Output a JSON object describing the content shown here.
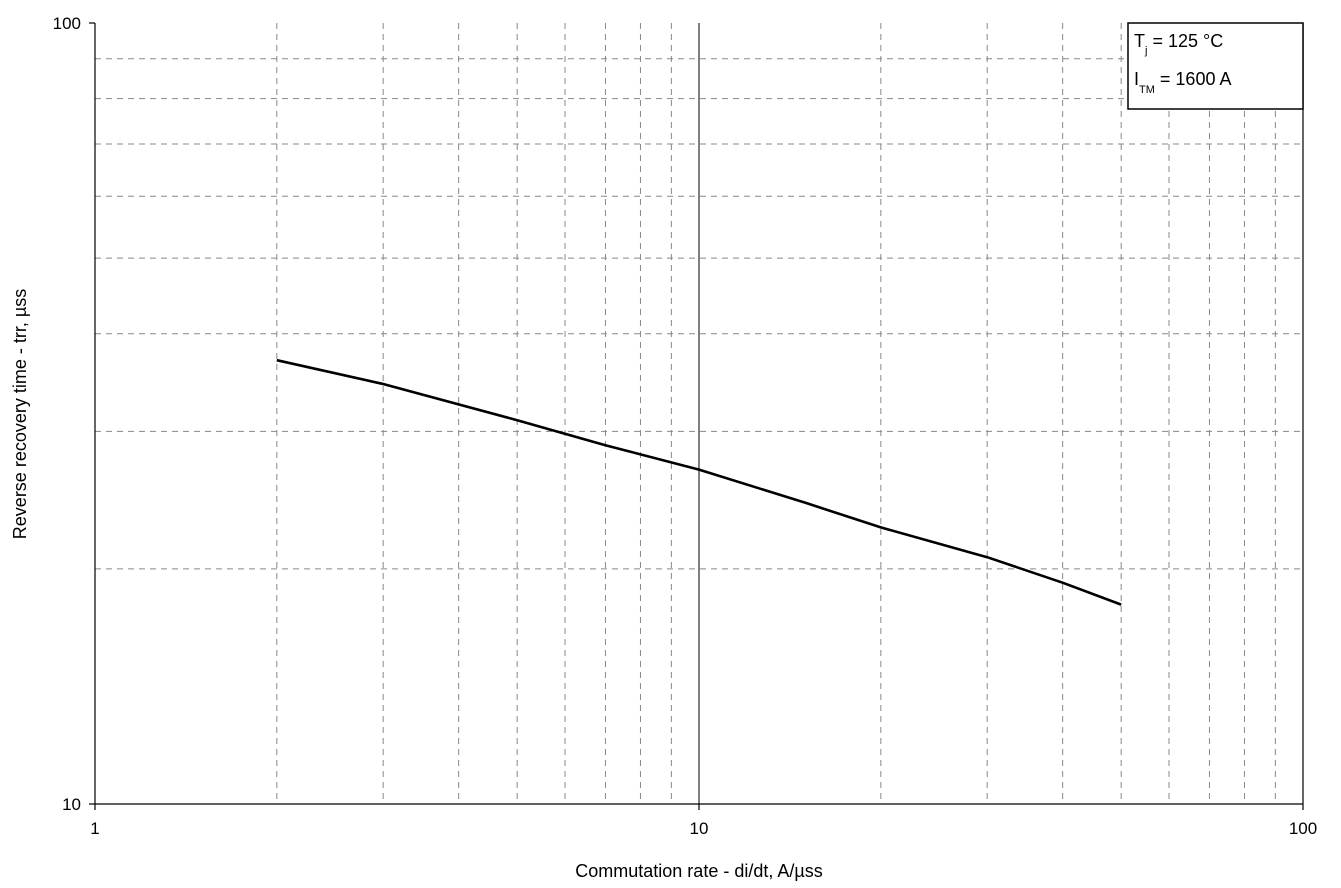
{
  "chart_data": {
    "type": "line",
    "title": "",
    "xlabel": "Commutation rate - di/dt, A/µss",
    "ylabel": "Reverse recovery time - trr, µss",
    "x_scale": "log",
    "y_scale": "log",
    "xlim": [
      1,
      100
    ],
    "ylim": [
      10,
      100
    ],
    "x_ticks": [
      "1",
      "10",
      "100"
    ],
    "y_ticks": [
      "10",
      "100"
    ],
    "grid": true,
    "legend_position": "top-right",
    "annotation": {
      "line1_main": "T",
      "line1_sub": "j",
      "line1_rest": " = 125 °C",
      "line2_main": "I",
      "line2_sub": "TM",
      "line2_rest": " = 1600 A"
    },
    "series": [
      {
        "color": "#000000",
        "x": [
          2,
          3,
          5,
          7,
          10,
          15,
          20,
          30,
          40,
          50
        ],
        "y": [
          37.0,
          34.5,
          31.0,
          28.8,
          26.8,
          24.3,
          22.6,
          20.7,
          19.2,
          18.0
        ]
      }
    ]
  }
}
